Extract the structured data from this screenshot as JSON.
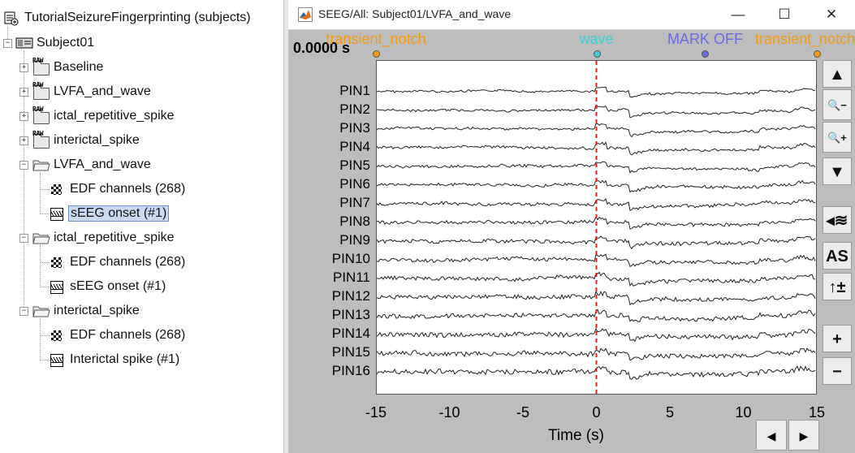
{
  "tree": {
    "protocol": "TutorialSeizureFingerprinting (subjects)",
    "subject": "Subject01",
    "raw_folders": [
      "Baseline",
      "LVFA_and_wave",
      "ictal_repetitive_spike",
      "interictal_spike"
    ],
    "raw_tag": "RAW",
    "condition_folders": [
      {
        "label": "LVFA_and_wave",
        "items": [
          {
            "label": "EDF channels (268)",
            "kind": "channel"
          },
          {
            "label": "sEEG onset (#1)",
            "kind": "event",
            "selected": true
          }
        ]
      },
      {
        "label": "ictal_repetitive_spike",
        "items": [
          {
            "label": "EDF channels (268)",
            "kind": "channel"
          },
          {
            "label": "sEEG onset (#1)",
            "kind": "event"
          }
        ]
      },
      {
        "label": "interictal_spike",
        "items": [
          {
            "label": "EDF channels (268)",
            "kind": "channel"
          },
          {
            "label": "Interictal spike (#1)",
            "kind": "event"
          }
        ]
      }
    ],
    "expander_plus": "+",
    "expander_minus": "−"
  },
  "figure": {
    "title": "SEEG/All: Subject01/LVFA_and_wave",
    "minimize": "—",
    "maximize": "☐",
    "close": "✕",
    "time_readout": "0.0000 s",
    "events": [
      {
        "label": "transient_notch",
        "color": "#f39c12",
        "time": -15
      },
      {
        "label": "wave",
        "color": "#39d0d8",
        "time": 0
      },
      {
        "label": "MARK OFF",
        "color": "#6a6ae0",
        "time": 7.4
      },
      {
        "label": "transient_notch",
        "color": "#f39c12",
        "time": 15
      }
    ],
    "channels": [
      "PIN1",
      "PIN2",
      "PIN3",
      "PIN4",
      "PIN5",
      "PIN6",
      "PIN7",
      "PIN8",
      "PIN9",
      "PIN10",
      "PIN11",
      "PIN12",
      "PIN13",
      "PIN14",
      "PIN15",
      "PIN16"
    ],
    "x_ticks": [
      "-15",
      "-10",
      "-5",
      "0",
      "5",
      "10",
      "15"
    ],
    "xlabel": "Time (s)",
    "xlim": [
      -15,
      15
    ],
    "cursor_time": 0,
    "cursor_color": "#e02020",
    "side_buttons": [
      {
        "name": "scroll-up",
        "glyph": "▲"
      },
      {
        "name": "zoom-out",
        "glyph": "🔍−"
      },
      {
        "name": "zoom-in",
        "glyph": "🔍+"
      },
      {
        "name": "scroll-down",
        "glyph": "▼"
      },
      {
        "name": "display-mode",
        "glyph": "◂≋"
      },
      {
        "name": "auto-scale",
        "glyph": "AS"
      },
      {
        "name": "scale-updown",
        "glyph": "↑±"
      },
      {
        "name": "gain-increase",
        "glyph": "+"
      },
      {
        "name": "gain-decrease",
        "glyph": "−"
      }
    ],
    "nav_prev": "◀",
    "nav_next": "▶"
  }
}
